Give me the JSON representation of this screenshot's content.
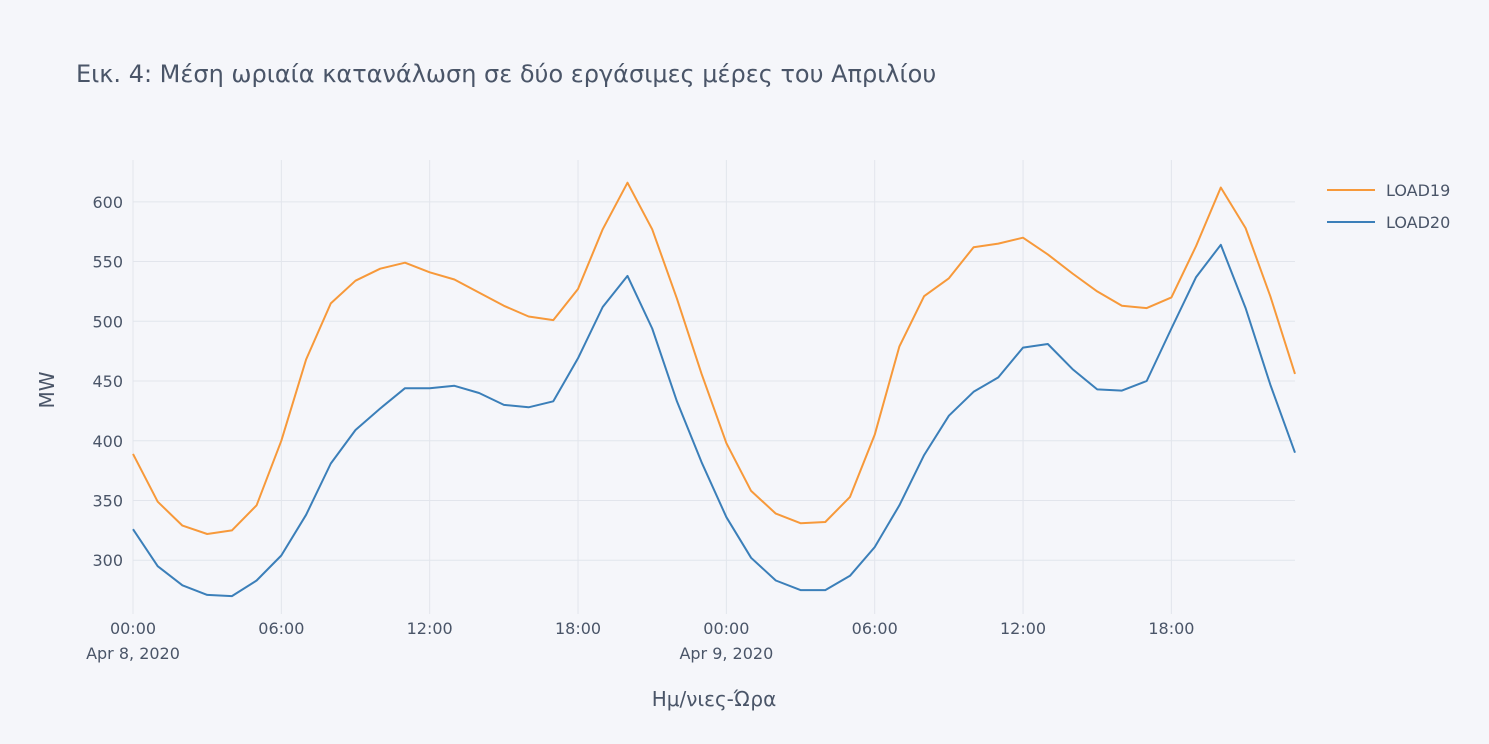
{
  "chart_data": {
    "type": "line",
    "title": "Εικ. 4: Μέση ωριαία κατανάλωση σε δύο εργάσιμες μέρες του Απριλίου",
    "xlabel": "Ημ/νιες-Ώρα",
    "ylabel": "MW",
    "x_start": "2020-04-08 00:00",
    "x_step_hours": 1,
    "x_ticks": [
      {
        "hour": 0,
        "label": "00:00",
        "sublabel": "Apr 8, 2020"
      },
      {
        "hour": 6,
        "label": "06:00",
        "sublabel": ""
      },
      {
        "hour": 12,
        "label": "12:00",
        "sublabel": ""
      },
      {
        "hour": 18,
        "label": "18:00",
        "sublabel": ""
      },
      {
        "hour": 24,
        "label": "00:00",
        "sublabel": "Apr 9, 2020"
      },
      {
        "hour": 30,
        "label": "06:00",
        "sublabel": ""
      },
      {
        "hour": 36,
        "label": "12:00",
        "sublabel": ""
      },
      {
        "hour": 42,
        "label": "18:00",
        "sublabel": ""
      }
    ],
    "y_ticks": [
      300,
      350,
      400,
      450,
      500,
      550,
      600
    ],
    "ylim": [
      255,
      635
    ],
    "xlim": [
      0,
      47
    ],
    "grid": true,
    "legend_position": "top-right",
    "series": [
      {
        "name": "LOAD19",
        "color": "#f7993a",
        "values": [
          389,
          349,
          329,
          322,
          325,
          346,
          400,
          468,
          515,
          534,
          544,
          549,
          541,
          535,
          524,
          513,
          504,
          501,
          527,
          577,
          616,
          577,
          519,
          456,
          398,
          358,
          339,
          331,
          332,
          353,
          405,
          479,
          521,
          536,
          562,
          565,
          570,
          556,
          540,
          525,
          513,
          511,
          520,
          563,
          612,
          578,
          521,
          456
        ]
      },
      {
        "name": "LOAD20",
        "color": "#3b7fb9",
        "values": [
          326,
          295,
          279,
          271,
          270,
          283,
          304,
          338,
          381,
          409,
          427,
          444,
          444,
          446,
          440,
          430,
          428,
          433,
          469,
          512,
          538,
          494,
          433,
          382,
          336,
          302,
          283,
          275,
          275,
          287,
          311,
          346,
          388,
          421,
          441,
          453,
          478,
          481,
          460,
          443,
          442,
          450,
          494,
          537,
          564,
          511,
          447,
          390
        ]
      }
    ]
  }
}
